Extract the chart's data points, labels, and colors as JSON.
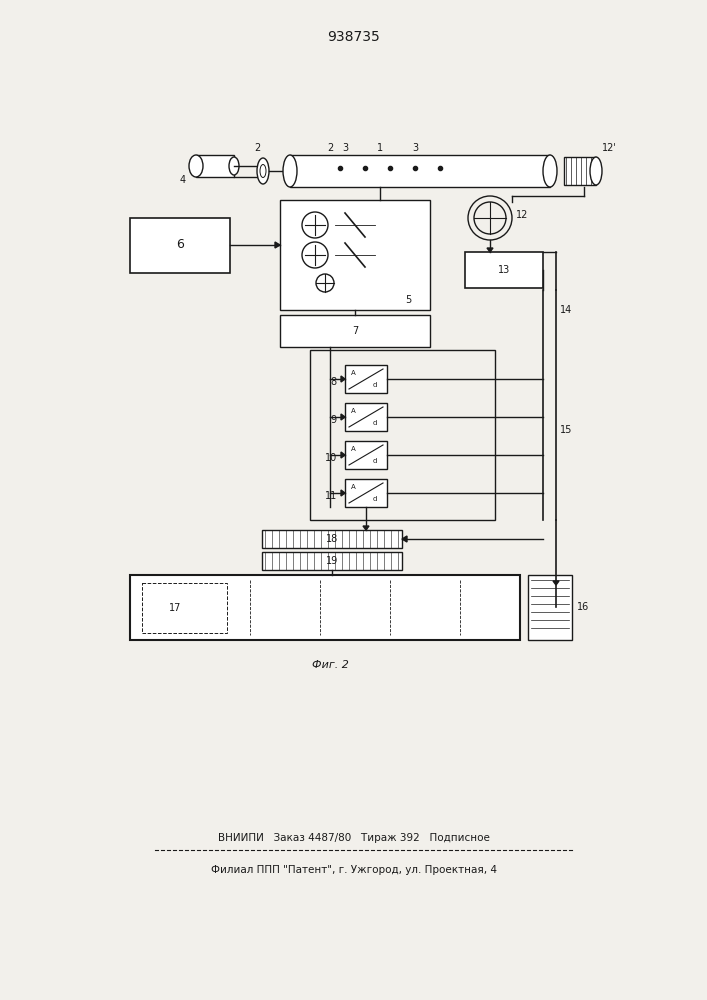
{
  "title": "938735",
  "fig_label": "Фиг. 2",
  "footer_line1": "ВНИИПИ   Заказ 4487/80   Тираж 392   Подписное",
  "footer_line2": "Филиал ППП \"Патент\", г. Ужгород, ул. Проектная, 4",
  "bg_color": "#f2f0eb",
  "line_color": "#1a1a1a"
}
